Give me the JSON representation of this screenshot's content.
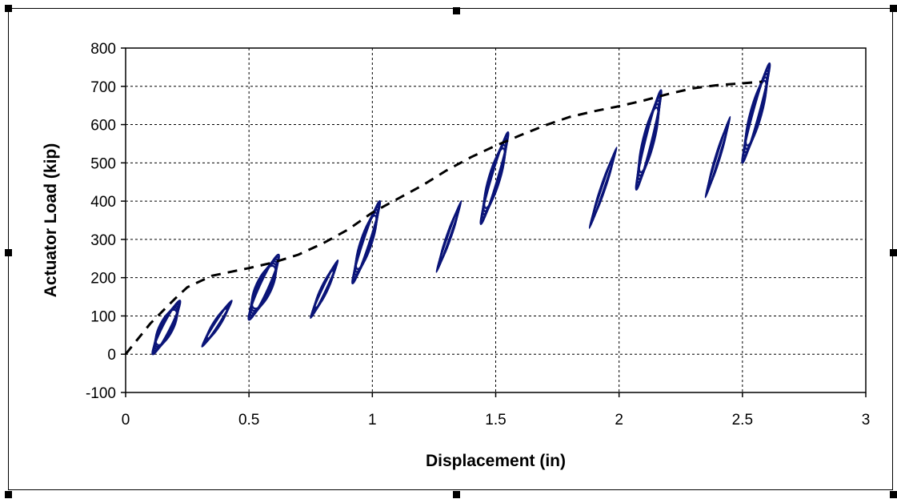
{
  "chart_data": {
    "type": "scatter",
    "xlabel": "Displacement (in)",
    "ylabel": "Actuator Load (kip)",
    "xlim": [
      0,
      3
    ],
    "ylim": [
      -100,
      800
    ],
    "xticks": [
      "0",
      "0.5",
      "1",
      "1.5",
      "2",
      "2.5",
      "3"
    ],
    "yticks": [
      "-100",
      "0",
      "100",
      "200",
      "300",
      "400",
      "500",
      "600",
      "700",
      "800"
    ],
    "grid": "dashed",
    "legend": "none",
    "colors": {
      "cycles": "#0a1478",
      "envelope": "#000000",
      "grid": "#000000"
    },
    "series": [
      {
        "style": "dashed-line",
        "points": [
          [
            0.0,
            0
          ],
          [
            0.1,
            80
          ],
          [
            0.2,
            145
          ],
          [
            0.25,
            175
          ],
          [
            0.35,
            205
          ],
          [
            0.5,
            225
          ],
          [
            0.6,
            240
          ],
          [
            0.7,
            260
          ],
          [
            0.8,
            290
          ],
          [
            0.9,
            325
          ],
          [
            1.0,
            370
          ],
          [
            1.1,
            405
          ],
          [
            1.2,
            440
          ],
          [
            1.3,
            480
          ],
          [
            1.4,
            515
          ],
          [
            1.5,
            545
          ],
          [
            1.6,
            572
          ],
          [
            1.7,
            598
          ],
          [
            1.8,
            620
          ],
          [
            1.9,
            635
          ],
          [
            2.0,
            648
          ],
          [
            2.1,
            663
          ],
          [
            2.2,
            680
          ],
          [
            2.3,
            695
          ],
          [
            2.4,
            703
          ],
          [
            2.5,
            708
          ],
          [
            2.58,
            712
          ]
        ]
      },
      {
        "style": "hysteresis-loops",
        "loops": [
          {
            "x": [
              0.11,
              0.22
            ],
            "y": [
              0,
              140
            ],
            "width": 0.03
          },
          {
            "x": [
              0.31,
              0.43
            ],
            "y": [
              20,
              140
            ],
            "width": 0.015
          },
          {
            "x": [
              0.5,
              0.62
            ],
            "y": [
              90,
              260
            ],
            "width": 0.035
          },
          {
            "x": [
              0.75,
              0.86
            ],
            "y": [
              95,
              245
            ],
            "width": 0.015
          },
          {
            "x": [
              0.92,
              1.03
            ],
            "y": [
              185,
              400
            ],
            "width": 0.025
          },
          {
            "x": [
              1.26,
              1.36
            ],
            "y": [
              215,
              400
            ],
            "width": 0.01
          },
          {
            "x": [
              1.44,
              1.55
            ],
            "y": [
              340,
              580
            ],
            "width": 0.025
          },
          {
            "x": [
              1.88,
              1.99
            ],
            "y": [
              330,
              540
            ],
            "width": 0.01
          },
          {
            "x": [
              2.07,
              2.17
            ],
            "y": [
              430,
              690
            ],
            "width": 0.025
          },
          {
            "x": [
              2.35,
              2.45
            ],
            "y": [
              410,
              620
            ],
            "width": 0.01
          },
          {
            "x": [
              2.5,
              2.61
            ],
            "y": [
              500,
              760
            ],
            "width": 0.025
          }
        ]
      }
    ]
  }
}
